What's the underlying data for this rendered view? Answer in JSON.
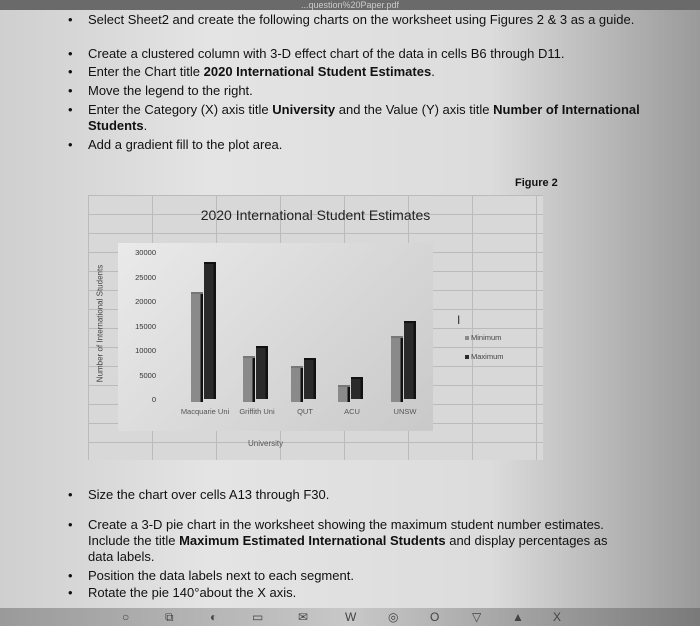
{
  "top_url_fragment": "...question%20Paper.pdf",
  "instructions_top": [
    {
      "text": "Select Sheet2 and create the following charts on the worksheet using Figures 2 & 3 as a guide."
    },
    {
      "text": "Create a clustered column with 3-D effect chart of the data in cells B6 through D11."
    },
    {
      "pre": "Enter the Chart title ",
      "bold": "2020 International Student Estimates",
      "post": "."
    },
    {
      "text": "Move the legend to the right."
    },
    {
      "pre": "Enter the Category (X) axis title ",
      "bold": "University",
      "mid": " and the Value (Y) axis title ",
      "bold2": "Number of International Students",
      "post": "."
    },
    {
      "text": "Add a gradient fill to the plot area."
    }
  ],
  "figure_label": "Figure 2",
  "chart_data": {
    "type": "bar",
    "title": "2020 International Student Estimates",
    "xlabel": "University",
    "ylabel": "Number of International Students",
    "categories": [
      "Macquarie Uni",
      "Griffith Uni",
      "QUT",
      "ACU",
      "UNSW"
    ],
    "series": [
      {
        "name": "Minimum",
        "values": [
          22000,
          9000,
          7000,
          3000,
          13000
        ],
        "color": "#8a8a8a"
      },
      {
        "name": "Maximum",
        "values": [
          27500,
          10500,
          8000,
          4000,
          15500
        ],
        "color": "#2a2a2a"
      }
    ],
    "yticks": [
      "0",
      "5000",
      "10000",
      "15000",
      "20000",
      "25000",
      "30000"
    ],
    "ylim": [
      0,
      30000
    ],
    "legend": "right",
    "effect": "3-D clustered column",
    "plot_area_fill": "gradient"
  },
  "instructions_bottom": [
    {
      "text": "Size the chart over cells A13 through F30."
    },
    {
      "pre": "Create a 3-D pie chart in the worksheet showing the maximum student number estimates. Include the title ",
      "bold": "Maximum Estimated International Students",
      "post": " and display percentages as data labels."
    },
    {
      "text": "Position the data labels next to each segment."
    },
    {
      "text": "Rotate the pie 140°about the X axis."
    }
  ],
  "taskbar_icons": [
    "search-icon",
    "task-view-icon",
    "edge-icon",
    "file-explorer-icon",
    "mail-icon",
    "word-icon",
    "chrome-icon",
    "opera-icon",
    "brave-icon",
    "photos-icon",
    "excel-icon"
  ]
}
